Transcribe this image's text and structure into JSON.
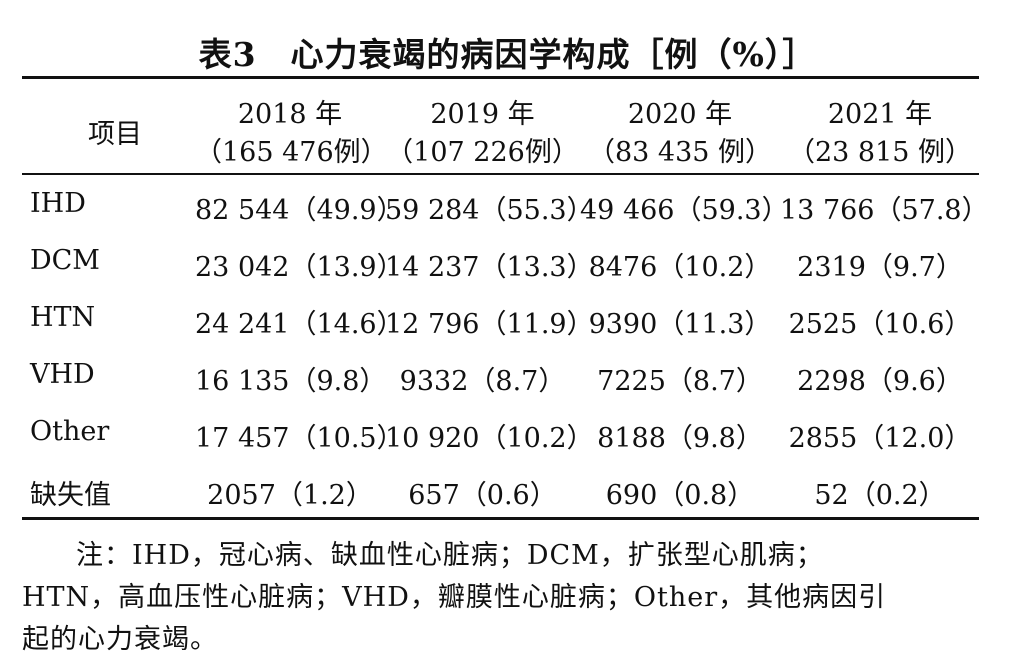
{
  "title": "表3　心力衰竭的病因学构成［例（%）］",
  "columns": [
    {
      "year": "2018 年",
      "count": "（165 476例）"
    },
    {
      "year": "2019 年",
      "count": "（107 226例）"
    },
    {
      "year": "2020 年",
      "count": "（83 435 例）"
    },
    {
      "year": "2021 年",
      "count": "（23 815 例）"
    }
  ],
  "header_item": "项目",
  "rows": [
    {
      "label": "IHD",
      "cells": [
        "82 544（49.9）",
        "59 284（55.3）",
        "49 466（59.3）",
        "13 766（57.8）"
      ]
    },
    {
      "label": "DCM",
      "cells": [
        "23 042（13.9）",
        "14 237（13.3）",
        "8476（10.2）",
        "2319（9.7）"
      ]
    },
    {
      "label": "HTN",
      "cells": [
        "24 241（14.6）",
        "12 796（11.9）",
        "9390（11.3）",
        "2525（10.6）"
      ]
    },
    {
      "label": "VHD",
      "cells": [
        "16 135（9.8）",
        "9332（8.7）",
        "7225（8.7）",
        "2298（9.6）"
      ]
    },
    {
      "label": "Other",
      "cells": [
        "17 457（10.5）",
        "10 920（10.2）",
        "8188（9.8）",
        "2855（12.0）"
      ]
    },
    {
      "label": "缺失值",
      "cells": [
        "2057（1.2）",
        "657（0.6）",
        "690（0.8）",
        "52（0.2）"
      ]
    }
  ],
  "note": {
    "line1": "注：IHD，冠心病、缺血性心脏病；DCM，扩张型心肌病；",
    "line2": "HTN，高血压性心脏病；VHD，瓣膜性心脏病；Other，其他病因引",
    "line3": "起的心力衰竭。"
  }
}
